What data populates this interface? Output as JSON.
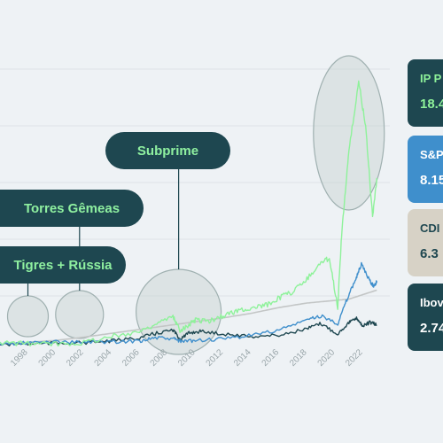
{
  "chart_data": {
    "type": "line",
    "title": "",
    "xlabel": "",
    "ylabel": "",
    "xlim": [
      1996,
      2023.3
    ],
    "x_ticks": [
      "1998",
      "2000",
      "2002",
      "2004",
      "2006",
      "2008",
      "2010",
      "2012",
      "2014",
      "2016",
      "2018",
      "2020",
      "2022"
    ],
    "ylim": [
      0,
      22000
    ],
    "grid": "horizontal",
    "series": [
      {
        "name": "IP P",
        "color": "#8ef29a",
        "points": [
          [
            1996,
            200
          ],
          [
            1998,
            150
          ],
          [
            2000,
            120
          ],
          [
            2002,
            250
          ],
          [
            2004,
            700
          ],
          [
            2006,
            1100
          ],
          [
            2007,
            1600
          ],
          [
            2008.4,
            2200
          ],
          [
            2008.9,
            1200
          ],
          [
            2009.5,
            1600
          ],
          [
            2010,
            2000
          ],
          [
            2011,
            1900
          ],
          [
            2012,
            2300
          ],
          [
            2013,
            2700
          ],
          [
            2014,
            2900
          ],
          [
            2015,
            3100
          ],
          [
            2016,
            3700
          ],
          [
            2017,
            4200
          ],
          [
            2018,
            5200
          ],
          [
            2019,
            6400
          ],
          [
            2019.6,
            6800
          ],
          [
            2020.2,
            3000
          ],
          [
            2020.5,
            9000
          ],
          [
            2021,
            15000
          ],
          [
            2021.7,
            20500
          ],
          [
            2022.2,
            17000
          ],
          [
            2022.7,
            10000
          ],
          [
            2023,
            13000
          ]
        ]
      },
      {
        "name": "S&P",
        "color": "#3f8fcc",
        "points": [
          [
            1996,
            100
          ],
          [
            1998,
            200
          ],
          [
            2000,
            300
          ],
          [
            2002,
            250
          ],
          [
            2004,
            300
          ],
          [
            2006,
            350
          ],
          [
            2007,
            600
          ],
          [
            2008.5,
            500
          ],
          [
            2009,
            300
          ],
          [
            2010,
            400
          ],
          [
            2012,
            500
          ],
          [
            2014,
            800
          ],
          [
            2016,
            1200
          ],
          [
            2018,
            2000
          ],
          [
            2019,
            2300
          ],
          [
            2020.2,
            1700
          ],
          [
            2020.8,
            3400
          ],
          [
            2021.5,
            5200
          ],
          [
            2021.9,
            6300
          ],
          [
            2022.5,
            5000
          ],
          [
            2022.8,
            4600
          ],
          [
            2023,
            5000
          ]
        ]
      },
      {
        "name": "CDI",
        "color": "#c3c6c6",
        "points": [
          [
            1996,
            100
          ],
          [
            1998,
            250
          ],
          [
            2000,
            400
          ],
          [
            2002,
            650
          ],
          [
            2004,
            950
          ],
          [
            2006,
            1250
          ],
          [
            2008,
            1550
          ],
          [
            2010,
            1850
          ],
          [
            2012,
            2150
          ],
          [
            2014,
            2500
          ],
          [
            2016,
            2950
          ],
          [
            2018,
            3300
          ],
          [
            2020,
            3500
          ],
          [
            2021,
            3600
          ],
          [
            2022,
            3950
          ],
          [
            2023,
            4300
          ]
        ]
      },
      {
        "name": "Ibov",
        "color": "#1e4750",
        "points": [
          [
            1996,
            80
          ],
          [
            1998,
            120
          ],
          [
            2000,
            180
          ],
          [
            2002,
            220
          ],
          [
            2004,
            350
          ],
          [
            2006,
            600
          ],
          [
            2007,
            900
          ],
          [
            2008.4,
            1200
          ],
          [
            2008.9,
            500
          ],
          [
            2009.6,
            1000
          ],
          [
            2010.4,
            1100
          ],
          [
            2012,
            900
          ],
          [
            2014,
            700
          ],
          [
            2016,
            800
          ],
          [
            2018,
            1300
          ],
          [
            2019,
            1700
          ],
          [
            2020.2,
            900
          ],
          [
            2021,
            1800
          ],
          [
            2021.6,
            2100
          ],
          [
            2022,
            1500
          ],
          [
            2022.5,
            1800
          ],
          [
            2023,
            1600
          ]
        ]
      }
    ],
    "annotations": [
      {
        "label": "Subprime",
        "x": 2008.8
      },
      {
        "label": "Torres Gêmeas",
        "x": 2001.7
      },
      {
        "label": "Tigres + Rússia",
        "x": 1998.0
      }
    ],
    "legend_cards": [
      {
        "name": "IP P",
        "value": "18.4",
        "bg": "#1e4750",
        "fg": "#8ef29a",
        "valfg": "#8ef29a"
      },
      {
        "name": "S&P",
        "value": "8.15",
        "bg": "#3f8fcc",
        "fg": "#ffffff",
        "valfg": "#ffffff"
      },
      {
        "name": "CDI",
        "value": "6.3",
        "bg": "#d7d2c6",
        "fg": "#1e4750",
        "valfg": "#1e4750"
      },
      {
        "name": "Ibov",
        "value": "2.74",
        "bg": "#1e4750",
        "fg": "#ffffff",
        "valfg": "#ffffff"
      }
    ]
  },
  "colors": {
    "background": "#eef2f5",
    "callout_bg": "#1e4750",
    "callout_text": "#8ff0a0",
    "highlight_circle": "#c6d0d0"
  }
}
